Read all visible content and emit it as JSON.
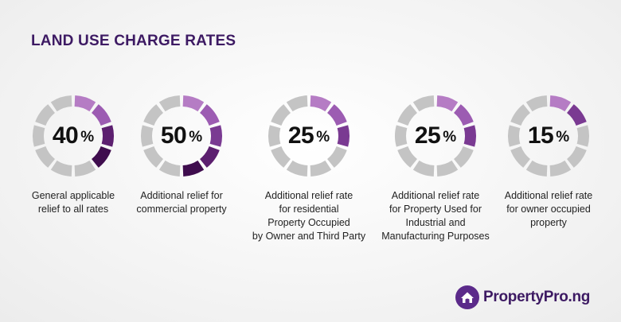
{
  "title": "LAND USE CHARGE RATES",
  "colors": {
    "title": "#3d1a63",
    "segment_empty": "#c4c4c4",
    "segment_shades": [
      "#b57cc4",
      "#9c5cb2",
      "#7a3a92",
      "#5c1f6f",
      "#3f0d4e"
    ]
  },
  "cards": [
    {
      "number": "40",
      "symbol": "%",
      "value": 40,
      "caption": [
        "General applicable",
        "relief to all rates"
      ]
    },
    {
      "number": "50",
      "symbol": "%",
      "value": 50,
      "caption": [
        "Additional relief for",
        "commercial property"
      ]
    },
    {
      "number": "25",
      "symbol": "%",
      "value": 25,
      "caption": [
        "Additional relief rate",
        "for residential",
        "Property Occupied",
        "by Owner and Third Party"
      ]
    },
    {
      "number": "25",
      "symbol": "%",
      "value": 25,
      "caption": [
        "Additional relief rate",
        "for Property Used for",
        "Industrial and",
        "Manufacturing Purposes"
      ]
    },
    {
      "number": "15",
      "symbol": "%",
      "value": 15,
      "caption": [
        "Additional relief rate",
        "for owner occupied",
        "property"
      ]
    }
  ],
  "logo": {
    "text": "PropertyPro.ng",
    "icon": "house-logo-icon"
  }
}
